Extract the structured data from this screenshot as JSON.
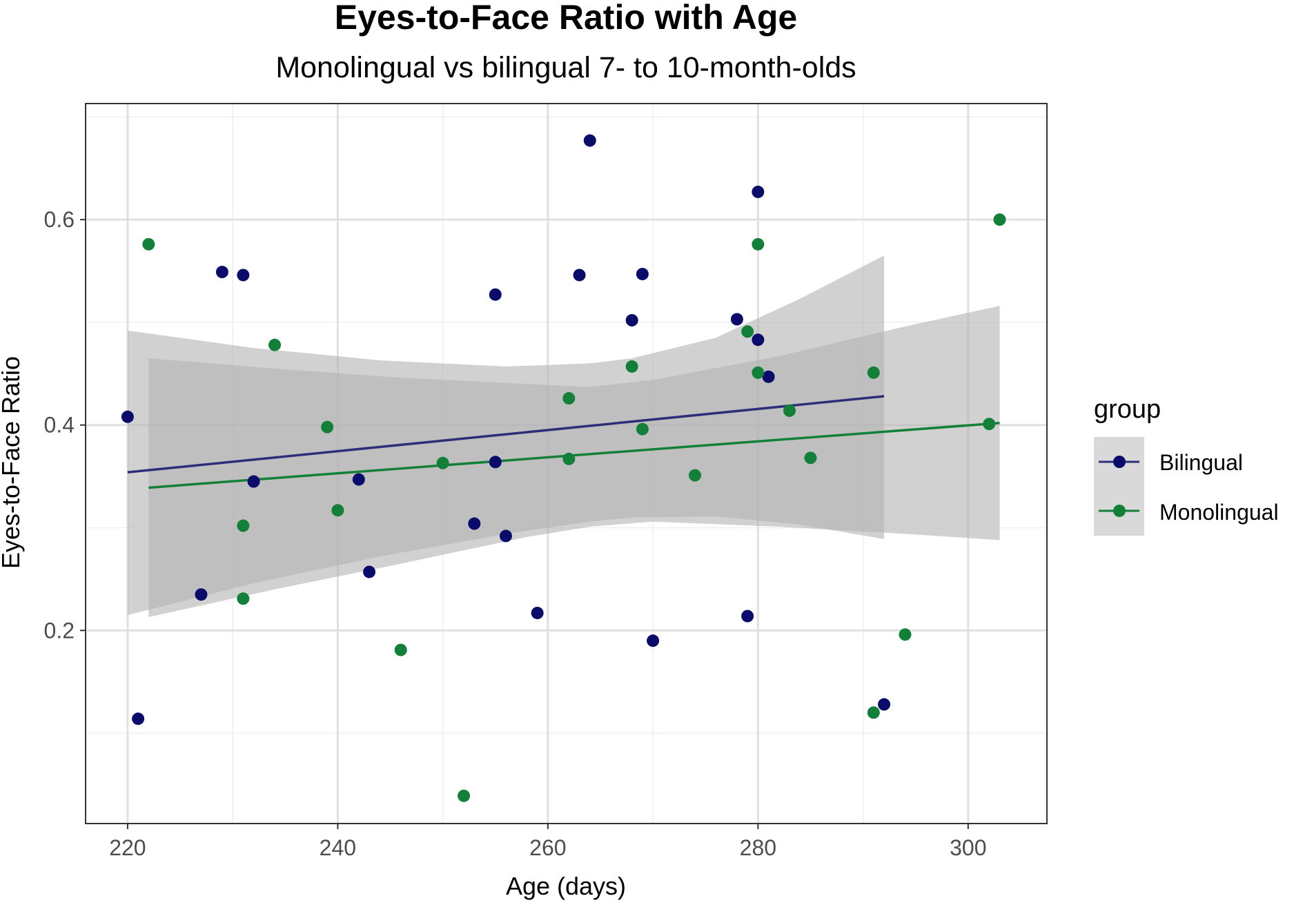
{
  "chart_data": {
    "type": "scatter",
    "title": "Eyes-to-Face Ratio with Age",
    "subtitle": "Monolingual vs bilingual 7- to 10-month-olds",
    "xlabel": "Age (days)",
    "ylabel": "Eyes-to-Face Ratio",
    "xlim": [
      216,
      307.5
    ],
    "ylim": [
      0.012,
      0.713
    ],
    "x_ticks": [
      220,
      240,
      260,
      280,
      300
    ],
    "y_ticks": [
      0.2,
      0.4,
      0.6
    ],
    "x_tick_labels": [
      "220",
      "240",
      "260",
      "280",
      "300"
    ],
    "y_tick_labels": [
      "0.2",
      "0.4",
      "0.6"
    ],
    "grid": true,
    "legend": {
      "title": "group",
      "position": "right",
      "entries": [
        "Bilingual",
        "Monolingual"
      ]
    },
    "series": [
      {
        "name": "Bilingual",
        "color": "#0b0b6b",
        "line_color": "#2e2e78",
        "points": [
          [
            220,
            0.408
          ],
          [
            221,
            0.114
          ],
          [
            227,
            0.235
          ],
          [
            229,
            0.549
          ],
          [
            231,
            0.546
          ],
          [
            232,
            0.345
          ],
          [
            242,
            0.347
          ],
          [
            243,
            0.257
          ],
          [
            253,
            0.304
          ],
          [
            255,
            0.527
          ],
          [
            255,
            0.364
          ],
          [
            256,
            0.292
          ],
          [
            259,
            0.217
          ],
          [
            263,
            0.546
          ],
          [
            264,
            0.677
          ],
          [
            268,
            0.502
          ],
          [
            269,
            0.547
          ],
          [
            270,
            0.19
          ],
          [
            278,
            0.503
          ],
          [
            279,
            0.214
          ],
          [
            280,
            0.627
          ],
          [
            280,
            0.483
          ],
          [
            281,
            0.447
          ],
          [
            292,
            0.128
          ]
        ],
        "fit": {
          "x_range": [
            220,
            292
          ],
          "y_at_ends": [
            0.354,
            0.428
          ],
          "ci_lower": [
            [
              220,
              0.215
            ],
            [
              232,
              0.246
            ],
            [
              244,
              0.272
            ],
            [
              256,
              0.294
            ],
            [
              264,
              0.306
            ],
            [
              268,
              0.31
            ],
            [
              276,
              0.311
            ],
            [
              284,
              0.303
            ],
            [
              292,
              0.289
            ]
          ],
          "ci_upper": [
            [
              220,
              0.492
            ],
            [
              232,
              0.475
            ],
            [
              244,
              0.463
            ],
            [
              256,
              0.457
            ],
            [
              264,
              0.46
            ],
            [
              268,
              0.465
            ],
            [
              276,
              0.485
            ],
            [
              284,
              0.523
            ],
            [
              292,
              0.565
            ]
          ]
        }
      },
      {
        "name": "Monolingual",
        "color": "#138039",
        "line_color": "#138039",
        "points": [
          [
            222,
            0.576
          ],
          [
            231,
            0.302
          ],
          [
            231,
            0.231
          ],
          [
            234,
            0.478
          ],
          [
            239,
            0.398
          ],
          [
            240,
            0.317
          ],
          [
            246,
            0.181
          ],
          [
            250,
            0.363
          ],
          [
            252,
            0.039
          ],
          [
            262,
            0.426
          ],
          [
            262,
            0.367
          ],
          [
            268,
            0.457
          ],
          [
            269,
            0.396
          ],
          [
            274,
            0.351
          ],
          [
            279,
            0.491
          ],
          [
            280,
            0.576
          ],
          [
            280,
            0.451
          ],
          [
            283,
            0.414
          ],
          [
            285,
            0.368
          ],
          [
            291,
            0.451
          ],
          [
            291,
            0.12
          ],
          [
            294,
            0.196
          ],
          [
            302,
            0.401
          ],
          [
            303,
            0.6
          ]
        ],
        "fit": {
          "x_range": [
            222,
            303
          ],
          "y_at_ends": [
            0.339,
            0.402
          ],
          "ci_lower": [
            [
              222,
              0.213
            ],
            [
              234,
              0.24
            ],
            [
              246,
              0.265
            ],
            [
              258,
              0.291
            ],
            [
              264,
              0.301
            ],
            [
              270,
              0.306
            ],
            [
              282,
              0.301
            ],
            [
              294,
              0.294
            ],
            [
              303,
              0.288
            ]
          ],
          "ci_upper": [
            [
              222,
              0.465
            ],
            [
              234,
              0.455
            ],
            [
              246,
              0.446
            ],
            [
              258,
              0.44
            ],
            [
              264,
              0.437
            ],
            [
              270,
              0.444
            ],
            [
              282,
              0.467
            ],
            [
              294,
              0.496
            ],
            [
              303,
              0.516
            ]
          ]
        }
      }
    ],
    "colors": {
      "ci_band": "#b3b3b3",
      "grid_major": "#e0e0e0",
      "grid_minor": "#efefef",
      "panel_border": "#333333",
      "legend_key_bg": "#d9d9d9"
    }
  }
}
